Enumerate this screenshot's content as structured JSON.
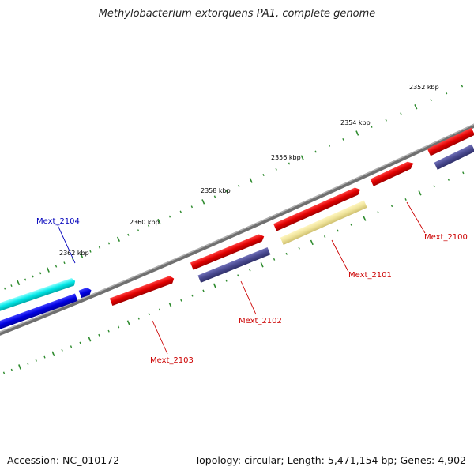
{
  "title": "Methylobacterium extorquens PA1, complete genome",
  "footer": {
    "accession": "Accession: NC_010172",
    "summary": "Topology: circular; Length: 5,471,154 bp; Genes: 4,902"
  },
  "colors": {
    "backbone": "#808080",
    "tick": "#2e8b2e",
    "label_red": "#cc0000",
    "label_blue": "#0000bb"
  },
  "ticks": [
    {
      "label": "2352 kbp"
    },
    {
      "label": "2354 kbp"
    },
    {
      "label": "2356 kbp"
    },
    {
      "label": "2358 kbp"
    },
    {
      "label": "2360 kbp"
    },
    {
      "label": "2362 kbp"
    }
  ],
  "genes": [
    {
      "id": "Mext_2100",
      "color": "#e00000",
      "label": "Mext_2100"
    },
    {
      "id": "Mext_2101",
      "color": "#f0e6a0",
      "label": "Mext_2101"
    },
    {
      "id": "Mext_2102",
      "color": "#4a4a90",
      "label": "Mext_2102"
    },
    {
      "id": "Mext_2103",
      "color": "#e00000",
      "label": "Mext_2103"
    },
    {
      "id": "Mext_2104",
      "color": "#00e0e0",
      "label": "Mext_2104"
    }
  ],
  "other_features": {
    "cds_red": "#e00000",
    "cds_purple": "#4a4a90",
    "cds_blue": "#0000e0"
  }
}
